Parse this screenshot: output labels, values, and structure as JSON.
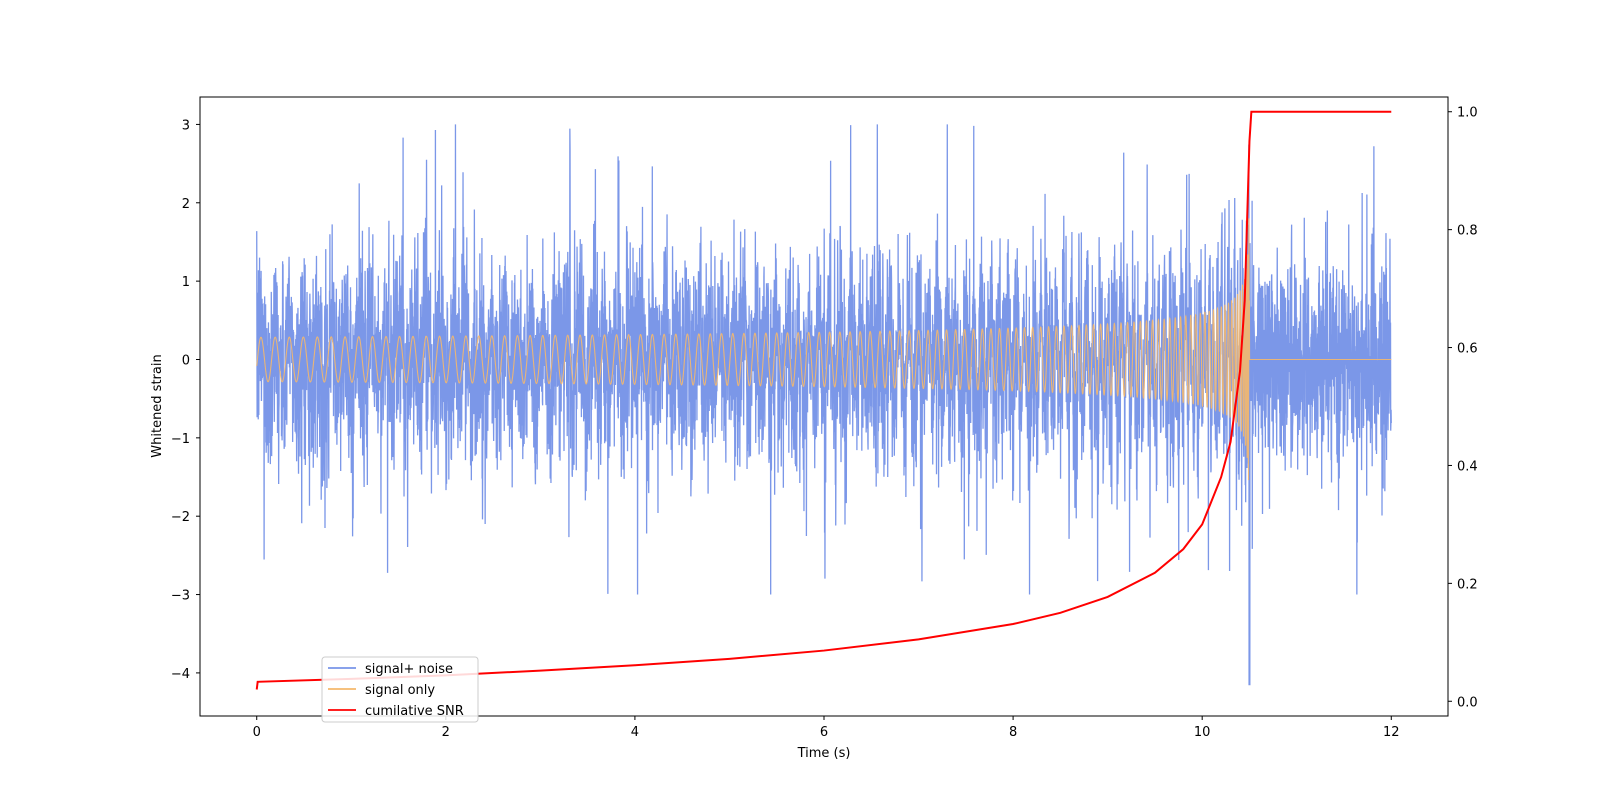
{
  "chart_data": {
    "type": "line",
    "title": "",
    "xlabel": "Time (s)",
    "ylabel": "Whitened strain",
    "y2label": "",
    "xlim": [
      -0.6,
      12.6
    ],
    "ylim": [
      -4.55,
      3.35
    ],
    "y2lim": [
      -0.025,
      1.025
    ],
    "xticks": [
      0,
      2,
      4,
      6,
      8,
      10,
      12
    ],
    "xtick_labels": [
      "0",
      "2",
      "4",
      "6",
      "8",
      "10",
      "12"
    ],
    "yticks": [
      3,
      2,
      1,
      0,
      -1,
      -2,
      -3,
      -4
    ],
    "ytick_labels": [
      "3",
      "2",
      "1",
      "0",
      "−1",
      "−2",
      "−3",
      "−4"
    ],
    "y2ticks": [
      1.0,
      0.8,
      0.6,
      0.4,
      0.2,
      0.0
    ],
    "y2tick_labels": [
      "1.0",
      "0.8",
      "0.6",
      "0.4",
      "0.2",
      "0.0"
    ],
    "grid": false,
    "legend_position": "lower-left",
    "series": [
      {
        "name": "signal+ noise",
        "color": "#7895e8",
        "axis": "left",
        "description_values": {
          "t_start": 0,
          "t_end": 12,
          "typical_amplitude": 1.5,
          "max_peak": 3.0,
          "min_peak": -4.15,
          "min_peak_time": 10.5
        }
      },
      {
        "name": "signal only",
        "color": "#f5b86b",
        "axis": "left",
        "description_values": {
          "chirp_start": 0,
          "merger_time": 10.5,
          "amplitude_at_merger": 2.3,
          "t_end": 12
        }
      },
      {
        "name": "cumilative SNR",
        "color": "#ff0000",
        "axis": "right",
        "points": [
          [
            0,
            0.02
          ],
          [
            0.01,
            0.033
          ],
          [
            1,
            0.038
          ],
          [
            2,
            0.044
          ],
          [
            3,
            0.052
          ],
          [
            4,
            0.061
          ],
          [
            5,
            0.072
          ],
          [
            6,
            0.086
          ],
          [
            7,
            0.105
          ],
          [
            8,
            0.131
          ],
          [
            8.5,
            0.15
          ],
          [
            9,
            0.177
          ],
          [
            9.5,
            0.218
          ],
          [
            9.8,
            0.258
          ],
          [
            10,
            0.3
          ],
          [
            10.2,
            0.38
          ],
          [
            10.3,
            0.44
          ],
          [
            10.4,
            0.56
          ],
          [
            10.45,
            0.68
          ],
          [
            10.5,
            0.95
          ],
          [
            10.52,
            1.0
          ],
          [
            12,
            1.0
          ]
        ]
      }
    ]
  }
}
